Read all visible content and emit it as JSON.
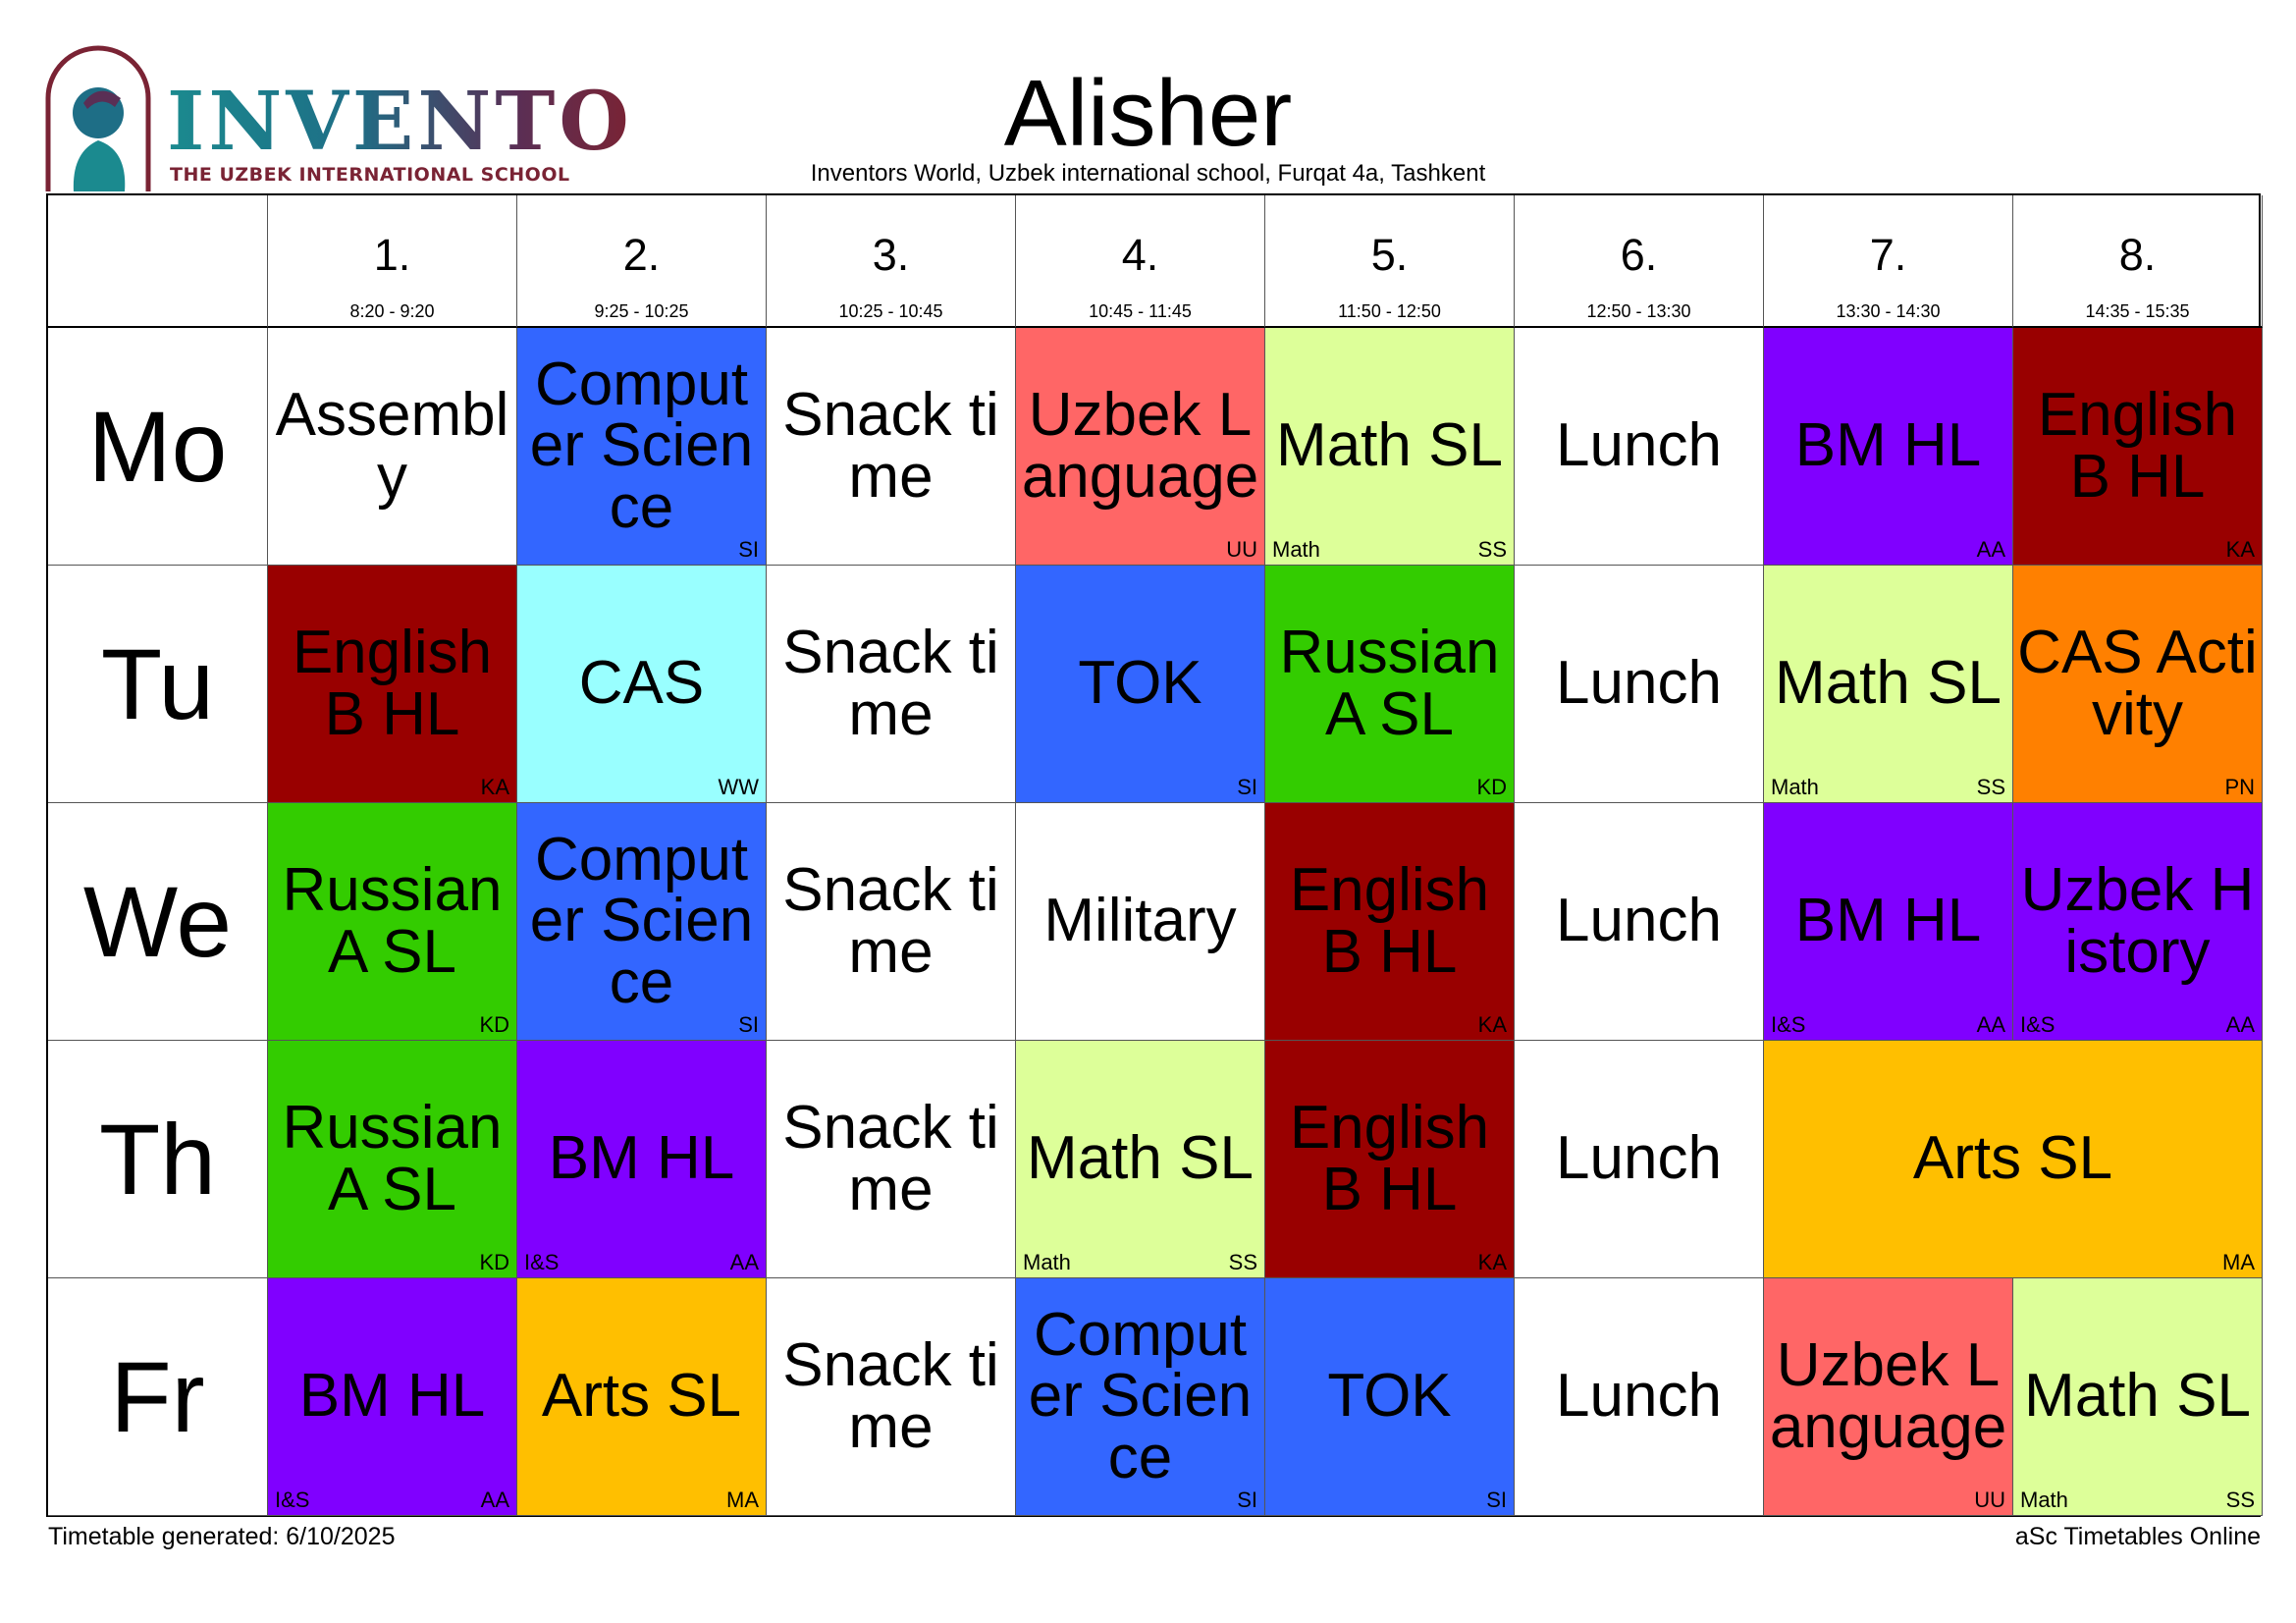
{
  "logo": {
    "word": "INVENTO",
    "subtitle": "THE UZBEK INTERNATIONAL SCHOOL"
  },
  "title": "Alisher",
  "subtitle": "Inventors World, Uzbek international school, Furqat 4a, Tashkent",
  "colors": {
    "white": "#ffffff",
    "blue": "#3366ff",
    "red": "#ff6666",
    "lime": "#ddff99",
    "purple": "#8000ff",
    "maroon": "#990000",
    "cyan": "#99ffff",
    "green": "#33cc00",
    "orange": "#ff8000",
    "amber": "#ffbf00"
  },
  "periods": [
    {
      "num": "1.",
      "time": "8:20 - 9:20"
    },
    {
      "num": "2.",
      "time": "9:25 - 10:25"
    },
    {
      "num": "3.",
      "time": "10:25 - 10:45"
    },
    {
      "num": "4.",
      "time": "10:45 - 11:45"
    },
    {
      "num": "5.",
      "time": "11:50 - 12:50"
    },
    {
      "num": "6.",
      "time": "12:50 - 13:30"
    },
    {
      "num": "7.",
      "time": "13:30 - 14:30"
    },
    {
      "num": "8.",
      "time": "14:35 - 15:35"
    }
  ],
  "days": [
    {
      "name": "Mo",
      "cells": [
        {
          "subject": "Assembly",
          "color": "white",
          "teacher": "",
          "group": ""
        },
        {
          "subject": "Computer Science",
          "color": "blue",
          "teacher": "SI",
          "group": ""
        },
        {
          "subject": "Snack time",
          "color": "white",
          "teacher": "",
          "group": ""
        },
        {
          "subject": "Uzbek Language",
          "color": "red",
          "teacher": "UU",
          "group": ""
        },
        {
          "subject": "Math SL",
          "color": "lime",
          "teacher": "SS",
          "group": "Math"
        },
        {
          "subject": "Lunch",
          "color": "white",
          "teacher": "",
          "group": ""
        },
        {
          "subject": "BM HL",
          "color": "purple",
          "teacher": "AA",
          "group": ""
        },
        {
          "subject": "English B HL",
          "color": "maroon",
          "teacher": "KA",
          "group": ""
        }
      ]
    },
    {
      "name": "Tu",
      "cells": [
        {
          "subject": "English B HL",
          "color": "maroon",
          "teacher": "KA",
          "group": ""
        },
        {
          "subject": "CAS",
          "color": "cyan",
          "teacher": "WW",
          "group": ""
        },
        {
          "subject": "Snack time",
          "color": "white",
          "teacher": "",
          "group": ""
        },
        {
          "subject": "TOK",
          "color": "blue",
          "teacher": "SI",
          "group": ""
        },
        {
          "subject": "Russian A SL",
          "color": "green",
          "teacher": "KD",
          "group": ""
        },
        {
          "subject": "Lunch",
          "color": "white",
          "teacher": "",
          "group": ""
        },
        {
          "subject": "Math SL",
          "color": "lime",
          "teacher": "SS",
          "group": "Math"
        },
        {
          "subject": "CAS Activity",
          "color": "orange",
          "teacher": "PN",
          "group": ""
        }
      ]
    },
    {
      "name": "We",
      "cells": [
        {
          "subject": "Russian A SL",
          "color": "green",
          "teacher": "KD",
          "group": ""
        },
        {
          "subject": "Computer Science",
          "color": "blue",
          "teacher": "SI",
          "group": ""
        },
        {
          "subject": "Snack time",
          "color": "white",
          "teacher": "",
          "group": ""
        },
        {
          "subject": "Military",
          "color": "white",
          "teacher": "",
          "group": ""
        },
        {
          "subject": "English B HL",
          "color": "maroon",
          "teacher": "KA",
          "group": ""
        },
        {
          "subject": "Lunch",
          "color": "white",
          "teacher": "",
          "group": ""
        },
        {
          "subject": "BM HL",
          "color": "purple",
          "teacher": "AA",
          "group": "I&S"
        },
        {
          "subject": "Uzbek History",
          "color": "purple",
          "teacher": "AA",
          "group": "I&S"
        }
      ]
    },
    {
      "name": "Th",
      "cells": [
        {
          "subject": "Russian A SL",
          "color": "green",
          "teacher": "KD",
          "group": ""
        },
        {
          "subject": "BM HL",
          "color": "purple",
          "teacher": "AA",
          "group": "I&S"
        },
        {
          "subject": "Snack time",
          "color": "white",
          "teacher": "",
          "group": ""
        },
        {
          "subject": "Math SL",
          "color": "lime",
          "teacher": "SS",
          "group": "Math"
        },
        {
          "subject": "English B HL",
          "color": "maroon",
          "teacher": "KA",
          "group": ""
        },
        {
          "subject": "Lunch",
          "color": "white",
          "teacher": "",
          "group": ""
        },
        {
          "subject": "Arts SL",
          "color": "amber",
          "teacher": "MA",
          "group": "",
          "span": 2
        }
      ]
    },
    {
      "name": "Fr",
      "cells": [
        {
          "subject": "BM HL",
          "color": "purple",
          "teacher": "AA",
          "group": "I&S"
        },
        {
          "subject": "Arts SL",
          "color": "amber",
          "teacher": "MA",
          "group": ""
        },
        {
          "subject": "Snack time",
          "color": "white",
          "teacher": "",
          "group": ""
        },
        {
          "subject": "Computer Science",
          "color": "blue",
          "teacher": "SI",
          "group": ""
        },
        {
          "subject": "TOK",
          "color": "blue",
          "teacher": "SI",
          "group": ""
        },
        {
          "subject": "Lunch",
          "color": "white",
          "teacher": "",
          "group": ""
        },
        {
          "subject": "Uzbek Language",
          "color": "red",
          "teacher": "UU",
          "group": ""
        },
        {
          "subject": "Math SL",
          "color": "lime",
          "teacher": "SS",
          "group": "Math"
        }
      ]
    }
  ],
  "footer": {
    "left": "Timetable generated: 6/10/2025",
    "right": "aSc Timetables Online"
  }
}
